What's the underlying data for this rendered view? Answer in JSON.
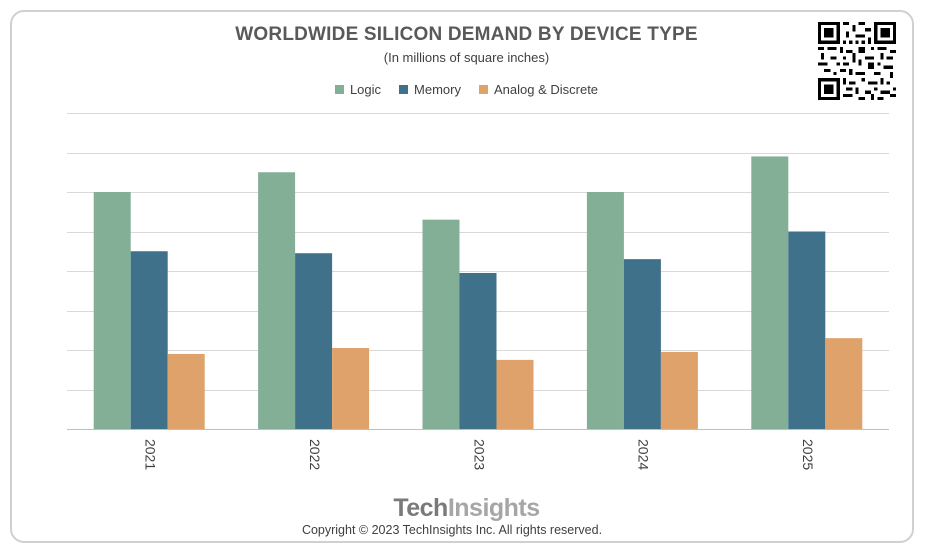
{
  "header": {
    "title": "WORLDWIDE SILICON DEMAND BY DEVICE TYPE",
    "subtitle": "(In millions of square inches)"
  },
  "footer": {
    "brand_part1": "Tech",
    "brand_part2": "Insights",
    "copyright": "Copyright © 2023 TechInsights Inc.  All rights reserved."
  },
  "qr_icon": "qr-code-icon",
  "chart_data": {
    "type": "bar",
    "title": "WORLDWIDE SILICON DEMAND BY DEVICE TYPE",
    "subtitle": "(In millions of square inches)",
    "categories": [
      "2021",
      "2022",
      "2023",
      "2024",
      "2025"
    ],
    "series": [
      {
        "name": "Logic",
        "color": "#84af97",
        "values": [
          6.0,
          6.5,
          5.3,
          6.0,
          6.9
        ]
      },
      {
        "name": "Memory",
        "color": "#3f718a",
        "values": [
          4.5,
          4.45,
          3.95,
          4.3,
          5.0
        ]
      },
      {
        "name": "Analog & Discrete",
        "color": "#dfa26b",
        "values": [
          1.9,
          2.05,
          1.75,
          1.95,
          2.3
        ]
      }
    ],
    "ylim": [
      0,
      8
    ],
    "y_ticks_shown": false,
    "grid": true,
    "legend_position": "top-center",
    "xlabel": "",
    "ylabel": ""
  }
}
